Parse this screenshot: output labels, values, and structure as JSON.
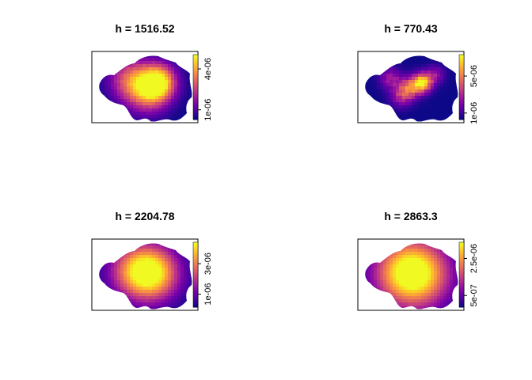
{
  "page": {
    "background": "#ffffff"
  },
  "palette": [
    "#0d0887",
    "#46039f",
    "#7201a8",
    "#9c179e",
    "#bd3786",
    "#d8576b",
    "#ed7953",
    "#fb9f3a",
    "#fdca26",
    "#f0f921"
  ],
  "chart_data": [
    {
      "type": "heatmap",
      "title": "h = 1516.52",
      "colorbar": {
        "ticks": [
          {
            "label": "1e-06",
            "frac": 0.15
          },
          {
            "label": "4e-06",
            "frac": 0.78
          }
        ]
      },
      "density": {
        "peaks": [
          {
            "x": 0.62,
            "y": 0.42,
            "w": 1.0,
            "s": 0.11
          },
          {
            "x": 0.45,
            "y": 0.48,
            "w": 0.55,
            "s": 0.14
          },
          {
            "x": 0.33,
            "y": 0.36,
            "w": 0.35,
            "s": 0.13
          },
          {
            "x": 0.55,
            "y": 0.62,
            "w": 0.3,
            "s": 0.12
          }
        ],
        "noise": 0.15
      }
    },
    {
      "type": "heatmap",
      "title": "h = 770.43",
      "colorbar": {
        "ticks": [
          {
            "label": "1e-06",
            "frac": 0.1
          },
          {
            "label": "5e-06",
            "frac": 0.67
          }
        ]
      },
      "density": {
        "peaks": [
          {
            "x": 0.6,
            "y": 0.43,
            "w": 1.0,
            "s": 0.06
          },
          {
            "x": 0.48,
            "y": 0.5,
            "w": 0.6,
            "s": 0.07
          },
          {
            "x": 0.3,
            "y": 0.37,
            "w": 0.35,
            "s": 0.07
          },
          {
            "x": 0.72,
            "y": 0.32,
            "w": 0.3,
            "s": 0.06
          },
          {
            "x": 0.4,
            "y": 0.62,
            "w": 0.35,
            "s": 0.07
          }
        ],
        "noise": 0.35
      }
    },
    {
      "type": "heatmap",
      "title": "h = 2204.78",
      "colorbar": {
        "ticks": [
          {
            "label": "1e-06",
            "frac": 0.2
          },
          {
            "label": "3e-06",
            "frac": 0.67
          }
        ]
      },
      "density": {
        "peaks": [
          {
            "x": 0.56,
            "y": 0.47,
            "w": 1.0,
            "s": 0.17
          },
          {
            "x": 0.38,
            "y": 0.43,
            "w": 0.5,
            "s": 0.17
          }
        ],
        "noise": 0.08
      }
    },
    {
      "type": "heatmap",
      "title": "h = 2863.3",
      "colorbar": {
        "ticks": [
          {
            "label": "5e-07",
            "frac": 0.18
          },
          {
            "label": "2.5e-06",
            "frac": 0.75
          }
        ]
      },
      "density": {
        "peaks": [
          {
            "x": 0.55,
            "y": 0.48,
            "w": 1.0,
            "s": 0.21
          },
          {
            "x": 0.38,
            "y": 0.45,
            "w": 0.4,
            "s": 0.2
          }
        ],
        "noise": 0.05
      }
    }
  ]
}
